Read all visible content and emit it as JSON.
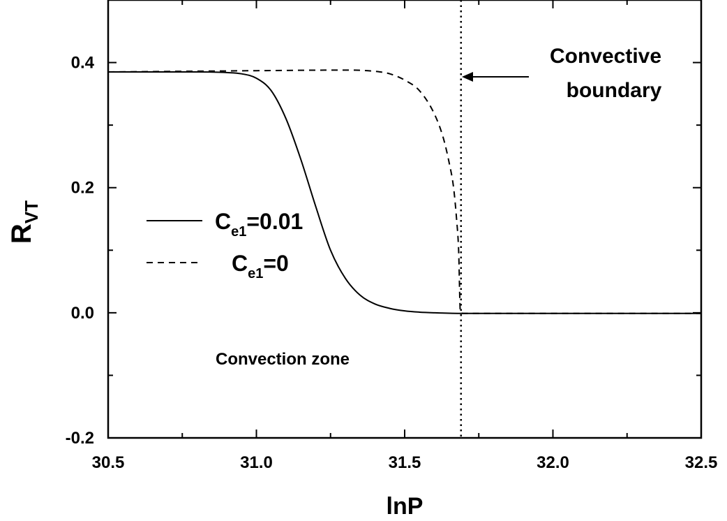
{
  "chart_data": {
    "type": "line",
    "xlabel": "lnP",
    "ylabel": "R",
    "ylabel_sub": "VT",
    "xlim": [
      30.5,
      32.5
    ],
    "ylim": [
      -0.2,
      0.5
    ],
    "xticks": [
      30.5,
      31.0,
      31.5,
      32.0,
      32.5
    ],
    "xtick_labels": [
      "30.5",
      "31.0",
      "31.5",
      "32.0",
      "32.5"
    ],
    "yticks": [
      -0.2,
      0.0,
      0.2,
      0.4
    ],
    "ytick_labels": [
      "-0.2",
      "0.0",
      "0.2",
      "0.4"
    ],
    "grid": false,
    "legend_position": "middle-left",
    "series": [
      {
        "name": "Ce1=0.01",
        "label_main": "C",
        "label_sub": "e1",
        "label_rest": "=0.01",
        "style": "solid",
        "x": [
          30.5,
          30.8,
          30.9,
          30.95,
          31.0,
          31.05,
          31.1,
          31.15,
          31.2,
          31.25,
          31.3,
          31.35,
          31.4,
          31.45,
          31.5,
          31.55,
          31.6,
          31.7,
          32.0,
          32.5
        ],
        "y": [
          0.385,
          0.385,
          0.384,
          0.382,
          0.375,
          0.355,
          0.31,
          0.245,
          0.17,
          0.1,
          0.055,
          0.028,
          0.014,
          0.007,
          0.003,
          0.001,
          0.0,
          -0.001,
          -0.001,
          -0.001
        ]
      },
      {
        "name": "Ce1=0",
        "label_main": "C",
        "label_sub": "e1",
        "label_rest": "=0",
        "style": "dashed",
        "x": [
          30.5,
          31.0,
          31.3,
          31.4,
          31.45,
          31.5,
          31.55,
          31.6,
          31.63,
          31.65,
          31.665,
          31.675,
          31.682,
          31.688,
          31.7,
          32.0,
          32.5
        ],
        "y": [
          0.385,
          0.387,
          0.388,
          0.386,
          0.382,
          0.372,
          0.355,
          0.318,
          0.28,
          0.24,
          0.2,
          0.15,
          0.1,
          0.0,
          -0.001,
          -0.001,
          -0.001
        ]
      }
    ],
    "vline": {
      "x": 31.69,
      "style": "dotted"
    },
    "annotations": {
      "boundary_line1": "Convective",
      "boundary_line2": "boundary",
      "zone": "Convection zone"
    }
  }
}
